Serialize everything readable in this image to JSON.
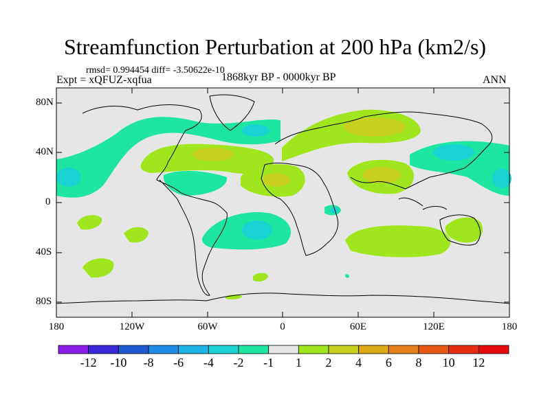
{
  "title": "Streamfunction Perturbation at 200 hPa (km2/s)",
  "stats": "rmsd= 0.994454 diff= -3.50622e-10",
  "experiment": "Expt = xQFUZ-xqfua",
  "period": "1868kyr BP - 0000kyr BP",
  "season": "ANN",
  "axes": {
    "y_ticks": [
      "80N",
      "40N",
      "0",
      "40S",
      "80S"
    ],
    "x_ticks": [
      "180",
      "120W",
      "60W",
      "0",
      "60E",
      "120E",
      "180"
    ]
  },
  "colorbar": {
    "labels": [
      "-12",
      "-10",
      "-8",
      "-6",
      "-4",
      "-2",
      "-1",
      "1",
      "2",
      "4",
      "6",
      "8",
      "10",
      "12"
    ],
    "colors": [
      "#8a1ee6",
      "#3c28d8",
      "#1e5ad2",
      "#1e8ce6",
      "#1eb4e6",
      "#19d2d2",
      "#1ee6a0",
      "#e6e6e6",
      "#a0e61e",
      "#c8d21e",
      "#dcaa14",
      "#e6821e",
      "#e65a14",
      "#e62d14",
      "#e60a0a"
    ]
  },
  "colors": {
    "background": "#e6e6e6",
    "neg1": "#1ee6a0",
    "neg2": "#19d2d2",
    "pos1": "#a0e61e",
    "pos2": "#c8d21e"
  }
}
